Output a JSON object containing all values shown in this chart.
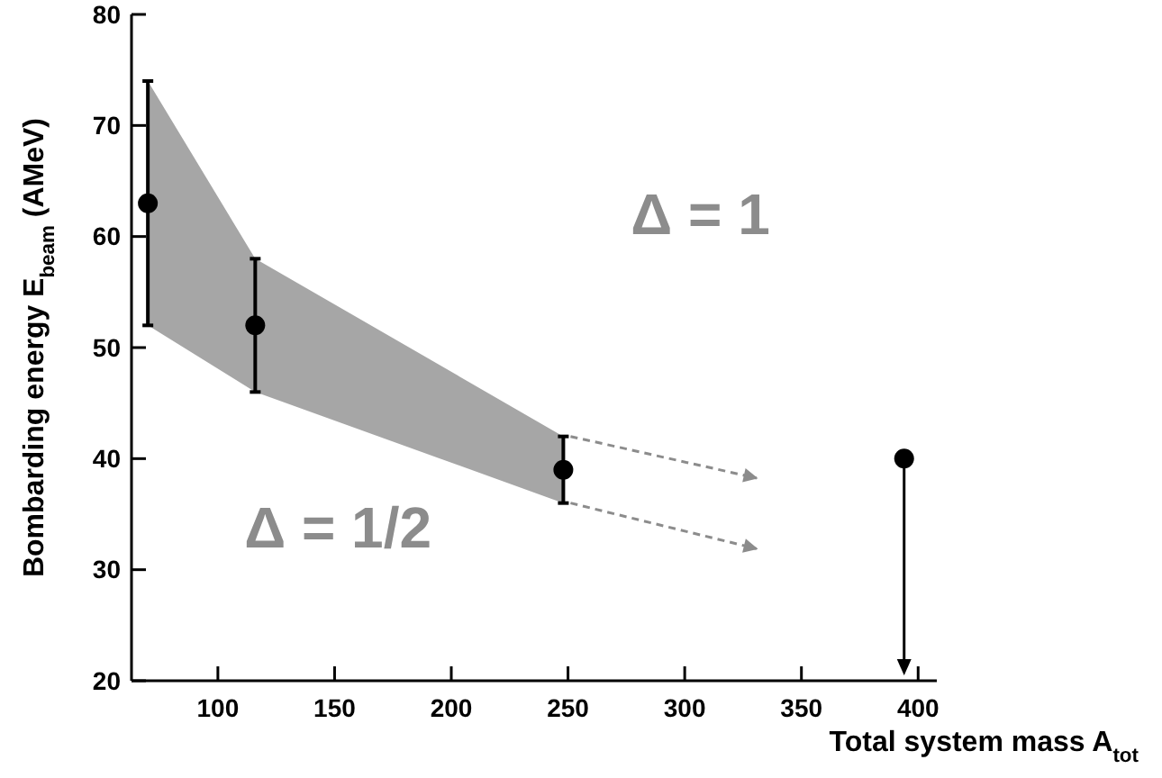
{
  "chart_data": {
    "type": "scatter",
    "xlabel": "Total system mass A$_{tot}$",
    "ylabel": "Bombarding energy E$_{beam}$ (AMeV)",
    "xlim": [
      63,
      408
    ],
    "xticks": [
      100,
      150,
      200,
      250,
      300,
      350,
      400
    ],
    "ylim": [
      20,
      80
    ],
    "yticks": [
      20,
      30,
      40,
      50,
      60,
      70,
      80
    ],
    "grid": false,
    "marker": "circle",
    "annotations": [
      "Δ = 1",
      "Δ = 1/2"
    ],
    "series": [
      {
        "color": "#000000",
        "x": [
          70,
          116,
          248,
          394
        ],
        "values": [
          63,
          52,
          39,
          40
        ],
        "errors": [
          [
            52,
            74
          ],
          [
            46,
            58
          ],
          [
            36,
            42
          ],
          null
        ],
        "lower": [
          52,
          46,
          36,
          null
        ],
        "upper": [
          74,
          58,
          42,
          null
        ]
      }
    ]
  }
}
